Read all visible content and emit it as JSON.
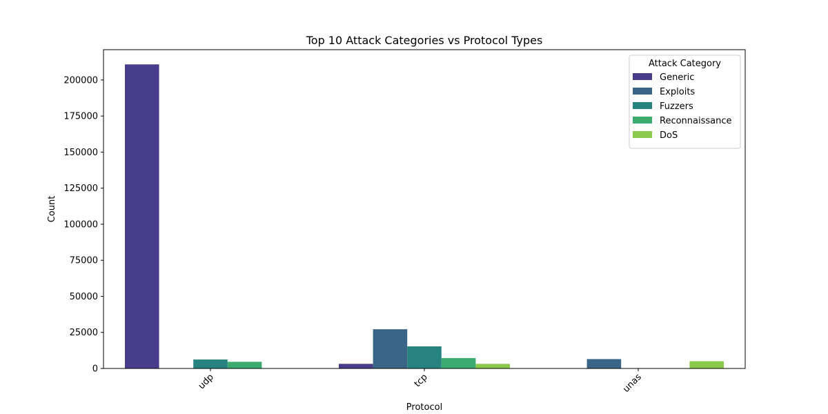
{
  "chart_data": {
    "type": "bar",
    "title": "Top 10 Attack Categories vs Protocol Types",
    "xlabel": "Protocol",
    "ylabel": "Count",
    "categories": [
      "udp",
      "tcp",
      "unas"
    ],
    "ylim": [
      0,
      221000
    ],
    "yticks": [
      0,
      25000,
      50000,
      75000,
      100000,
      125000,
      150000,
      175000,
      200000
    ],
    "ytick_labels": [
      "0",
      "25000",
      "50000",
      "75000",
      "100000",
      "125000",
      "150000",
      "175000",
      "200000"
    ],
    "grid": false,
    "legend": {
      "title": "Attack Category",
      "placement": "top-right"
    },
    "series": [
      {
        "name": "Generic",
        "color": "#483d8b",
        "values": [
          210800,
          3200,
          0
        ]
      },
      {
        "name": "Exploits",
        "color": "#3b6586",
        "values": [
          0,
          27200,
          6500
        ]
      },
      {
        "name": "Fuzzers",
        "color": "#268380",
        "values": [
          6200,
          15300,
          0
        ]
      },
      {
        "name": "Reconnaissance",
        "color": "#3dab6f",
        "values": [
          4600,
          7200,
          0
        ]
      },
      {
        "name": "DoS",
        "color": "#8ac94a",
        "values": [
          0,
          3200,
          5000
        ]
      }
    ]
  }
}
